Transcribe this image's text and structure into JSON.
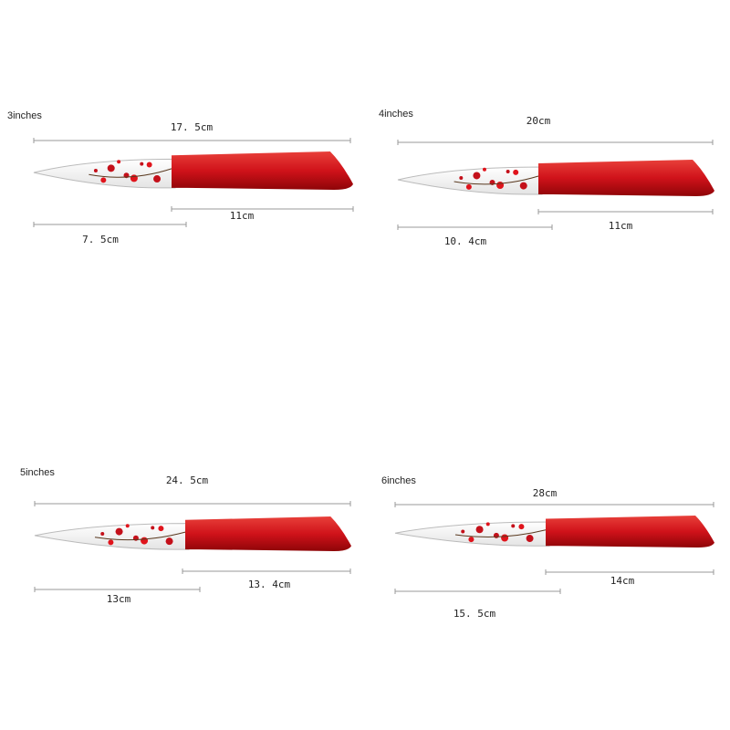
{
  "panels": [
    {
      "title": "3inches",
      "total": "17. 5cm",
      "handle": "11cm",
      "blade": "7. 5cm"
    },
    {
      "title": "4inches",
      "total": "20cm",
      "handle": "11cm",
      "blade": "10. 4cm"
    },
    {
      "title": "5inches",
      "total": "24. 5cm",
      "handle": "13. 4cm",
      "blade": "13cm"
    },
    {
      "title": "6inches",
      "total": "28cm",
      "handle": "14cm",
      "blade": "15. 5cm"
    }
  ]
}
